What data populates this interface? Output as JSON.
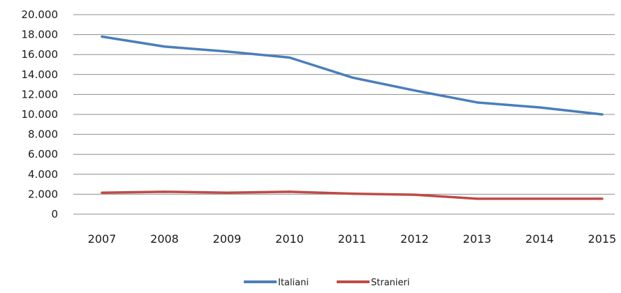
{
  "chart_data": {
    "type": "line",
    "title": "",
    "xlabel": "",
    "ylabel": "",
    "categories": [
      "2007",
      "2008",
      "2009",
      "2010",
      "2011",
      "2012",
      "2013",
      "2014",
      "2015"
    ],
    "ylim": [
      0,
      20000
    ],
    "y_ticks": [
      0,
      2000,
      4000,
      6000,
      8000,
      10000,
      12000,
      14000,
      16000,
      18000,
      20000
    ],
    "y_tick_labels": [
      "0",
      "2.000",
      "4.000",
      "6.000",
      "8.000",
      "10.000",
      "12.000",
      "14.000",
      "16.000",
      "18.000",
      "20.000"
    ],
    "grid": true,
    "legend_position": "bottom",
    "series": [
      {
        "name": "Italiani",
        "color": "#4a7ebb",
        "values": [
          17800,
          16800,
          16300,
          15700,
          13700,
          12400,
          11200,
          10700,
          10000
        ]
      },
      {
        "name": "Stranieri",
        "color": "#be4b48",
        "values": [
          2150,
          2250,
          2150,
          2250,
          2050,
          1950,
          1550,
          1550,
          1550
        ]
      }
    ]
  }
}
